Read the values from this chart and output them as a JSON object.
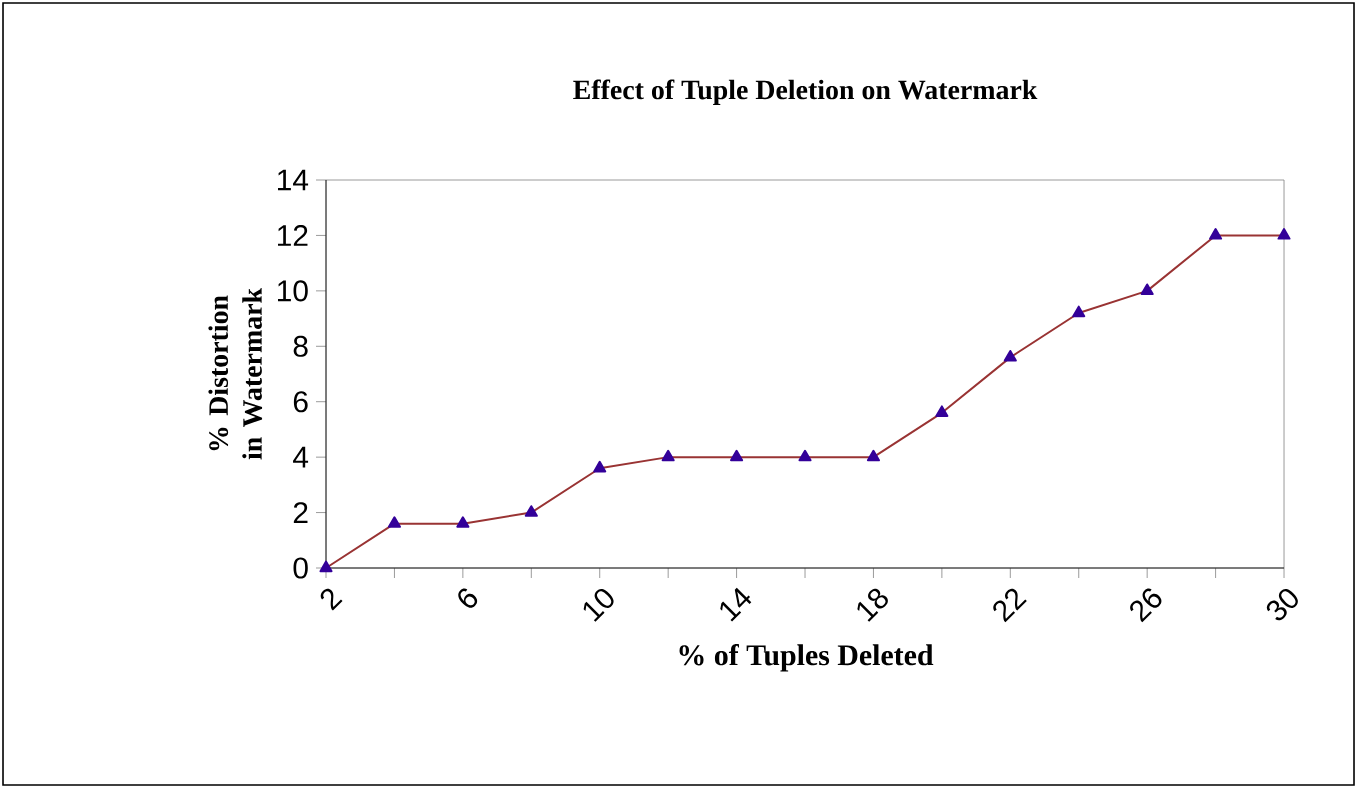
{
  "chart_data": {
    "type": "line",
    "title": "Effect of Tuple Deletion on Watermark",
    "xlabel": "% of Tuples Deleted",
    "ylabel": "% Distortion in Watermark",
    "categories": [
      "2",
      null,
      "6",
      null,
      "10",
      null,
      "14",
      null,
      "18",
      null,
      "22",
      null,
      "26",
      null,
      "30"
    ],
    "series": [
      {
        "color": "#993333",
        "values": [
          0,
          1.6,
          1.6,
          2,
          3.6,
          4,
          4,
          4,
          4,
          5.6,
          7.6,
          9.2,
          10,
          12,
          12
        ]
      }
    ],
    "ylim": [
      0,
      14
    ],
    "yticks": [
      0,
      2,
      4,
      6,
      8,
      10,
      12,
      14
    ],
    "marker": "triangle",
    "line_style": "solid"
  }
}
